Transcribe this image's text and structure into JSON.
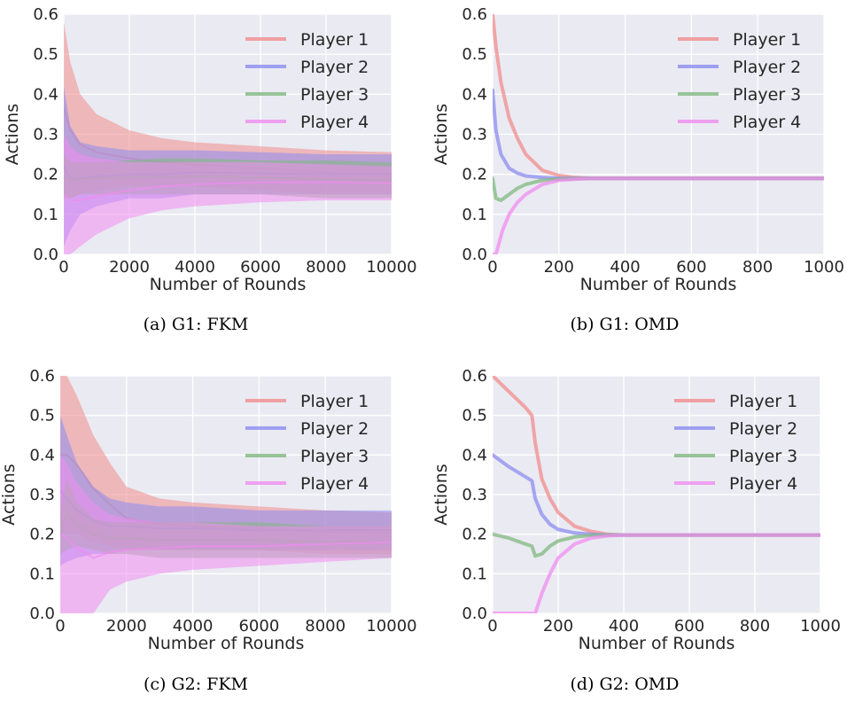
{
  "figure": {
    "legend_labels": [
      "Player 1",
      "Player 2",
      "Player 3",
      "Player 4"
    ],
    "colors": [
      "#f08c8c",
      "#8c8cf0",
      "#80b880",
      "#f08cf0"
    ],
    "axes_background": "#eaeaf2",
    "grid_color": "#ffffff"
  },
  "chart_data": [
    {
      "type": "area",
      "caption": "(a) G1: FKM",
      "xlabel": "Number of Rounds",
      "ylabel": "Actions",
      "xlim": [
        0,
        10000
      ],
      "ylim": [
        0,
        0.6
      ],
      "xticks": [
        0,
        2000,
        4000,
        6000,
        8000,
        10000
      ],
      "yticks": [
        0.0,
        0.1,
        0.2,
        0.3,
        0.4,
        0.5,
        0.6
      ],
      "grid": true,
      "legend_position": "top-right",
      "series": [
        {
          "name": "Player 1",
          "x": [
            0,
            200,
            500,
            1000,
            2000,
            3000,
            4000,
            6000,
            8000,
            10000
          ],
          "upper": [
            0.58,
            0.48,
            0.4,
            0.35,
            0.31,
            0.29,
            0.28,
            0.27,
            0.26,
            0.255
          ],
          "lower": [
            0.15,
            0.14,
            0.15,
            0.16,
            0.17,
            0.17,
            0.17,
            0.16,
            0.15,
            0.15
          ]
        },
        {
          "name": "Player 2",
          "x": [
            0,
            200,
            500,
            1000,
            2000,
            3000,
            4000,
            6000,
            8000,
            10000
          ],
          "upper": [
            0.42,
            0.32,
            0.28,
            0.27,
            0.26,
            0.26,
            0.26,
            0.255,
            0.25,
            0.25
          ],
          "lower": [
            0.02,
            0.06,
            0.1,
            0.12,
            0.14,
            0.14,
            0.15,
            0.15,
            0.15,
            0.15
          ]
        },
        {
          "name": "Player 3",
          "x": [
            0,
            200,
            500,
            1000,
            2000,
            3000,
            4000,
            6000,
            8000,
            10000
          ],
          "upper": [
            0.25,
            0.23,
            0.23,
            0.23,
            0.235,
            0.24,
            0.24,
            0.235,
            0.235,
            0.23
          ],
          "lower": [
            0.14,
            0.14,
            0.15,
            0.15,
            0.15,
            0.15,
            0.15,
            0.15,
            0.14,
            0.14
          ]
        },
        {
          "name": "Player 4",
          "x": [
            0,
            200,
            500,
            1000,
            2000,
            3000,
            4000,
            6000,
            8000,
            10000
          ],
          "upper": [
            0.3,
            0.27,
            0.25,
            0.24,
            0.23,
            0.23,
            0.23,
            0.23,
            0.225,
            0.22
          ],
          "lower": [
            0.0,
            0.0,
            0.02,
            0.05,
            0.09,
            0.11,
            0.12,
            0.13,
            0.135,
            0.135
          ]
        }
      ]
    },
    {
      "type": "line",
      "caption": "(b) G1: OMD",
      "xlabel": "Number of Rounds",
      "ylabel": "Actions",
      "xlim": [
        0,
        1000
      ],
      "ylim": [
        0,
        0.6
      ],
      "xticks": [
        0,
        200,
        400,
        600,
        800,
        1000
      ],
      "yticks": [
        0.0,
        0.1,
        0.2,
        0.3,
        0.4,
        0.5,
        0.6
      ],
      "grid": true,
      "legend_position": "top-right",
      "series": [
        {
          "name": "Player 1",
          "x": [
            0,
            10,
            25,
            50,
            75,
            100,
            150,
            200,
            250,
            300,
            400,
            1000
          ],
          "y": [
            0.6,
            0.52,
            0.43,
            0.34,
            0.29,
            0.25,
            0.21,
            0.197,
            0.192,
            0.19,
            0.19,
            0.19
          ]
        },
        {
          "name": "Player 2",
          "x": [
            0,
            10,
            25,
            50,
            75,
            100,
            150,
            200,
            300,
            400,
            1000
          ],
          "y": [
            0.41,
            0.31,
            0.25,
            0.215,
            0.203,
            0.196,
            0.192,
            0.19,
            0.19,
            0.19,
            0.19
          ]
        },
        {
          "name": "Player 3",
          "x": [
            0,
            10,
            25,
            50,
            75,
            100,
            150,
            200,
            300,
            400,
            1000
          ],
          "y": [
            0.19,
            0.14,
            0.135,
            0.15,
            0.165,
            0.175,
            0.185,
            0.188,
            0.19,
            0.19,
            0.19
          ]
        },
        {
          "name": "Player 4",
          "x": [
            0,
            10,
            20,
            30,
            50,
            75,
            100,
            150,
            200,
            250,
            300,
            400,
            1000
          ],
          "y": [
            0.0,
            0.0,
            0.03,
            0.06,
            0.1,
            0.13,
            0.15,
            0.175,
            0.185,
            0.188,
            0.19,
            0.19,
            0.19
          ]
        }
      ]
    },
    {
      "type": "area",
      "caption": "(c) G2: FKM",
      "xlabel": "Number of Rounds",
      "ylabel": "Actions",
      "xlim": [
        0,
        10000
      ],
      "ylim": [
        0,
        0.6
      ],
      "xticks": [
        0,
        2000,
        4000,
        6000,
        8000,
        10000
      ],
      "yticks": [
        0.0,
        0.1,
        0.2,
        0.3,
        0.4,
        0.5,
        0.6
      ],
      "grid": true,
      "legend_position": "top-right",
      "series": [
        {
          "name": "Player 1",
          "x": [
            0,
            200,
            500,
            1000,
            1500,
            2000,
            3000,
            4000,
            6000,
            8000,
            10000
          ],
          "upper": [
            0.6,
            0.6,
            0.55,
            0.45,
            0.38,
            0.32,
            0.29,
            0.28,
            0.27,
            0.26,
            0.255
          ],
          "lower": [
            0.2,
            0.2,
            0.2,
            0.18,
            0.17,
            0.16,
            0.16,
            0.16,
            0.16,
            0.15,
            0.15
          ]
        },
        {
          "name": "Player 2",
          "x": [
            0,
            200,
            500,
            1000,
            1500,
            2000,
            3000,
            4000,
            6000,
            8000,
            10000
          ],
          "upper": [
            0.5,
            0.45,
            0.38,
            0.32,
            0.29,
            0.28,
            0.27,
            0.27,
            0.26,
            0.26,
            0.26
          ],
          "lower": [
            0.12,
            0.13,
            0.14,
            0.15,
            0.15,
            0.16,
            0.16,
            0.16,
            0.16,
            0.16,
            0.16
          ]
        },
        {
          "name": "Player 3",
          "x": [
            0,
            200,
            500,
            1000,
            1500,
            2000,
            3000,
            4000,
            6000,
            8000,
            10000
          ],
          "upper": [
            0.26,
            0.34,
            0.28,
            0.24,
            0.23,
            0.23,
            0.23,
            0.23,
            0.23,
            0.22,
            0.22
          ],
          "lower": [
            0.15,
            0.16,
            0.17,
            0.16,
            0.15,
            0.15,
            0.14,
            0.14,
            0.14,
            0.14,
            0.14
          ]
        },
        {
          "name": "Player 4",
          "x": [
            0,
            200,
            500,
            1000,
            1500,
            2000,
            3000,
            4000,
            6000,
            8000,
            10000
          ],
          "upper": [
            0.4,
            0.38,
            0.33,
            0.28,
            0.25,
            0.24,
            0.23,
            0.23,
            0.22,
            0.22,
            0.22
          ],
          "lower": [
            0.0,
            0.0,
            0.0,
            0.0,
            0.06,
            0.08,
            0.1,
            0.11,
            0.12,
            0.13,
            0.14
          ]
        }
      ]
    },
    {
      "type": "line",
      "caption": "(d) G2: OMD",
      "xlabel": "Number of Rounds",
      "ylabel": "Actions",
      "xlim": [
        0,
        1000
      ],
      "ylim": [
        0,
        0.6
      ],
      "xticks": [
        0,
        200,
        400,
        600,
        800,
        1000
      ],
      "yticks": [
        0.0,
        0.1,
        0.2,
        0.3,
        0.4,
        0.5,
        0.6
      ],
      "grid": true,
      "legend_position": "top-right",
      "series": [
        {
          "name": "Player 1",
          "x": [
            0,
            50,
            100,
            120,
            130,
            150,
            175,
            200,
            250,
            300,
            350,
            400,
            1000
          ],
          "y": [
            0.6,
            0.56,
            0.52,
            0.5,
            0.43,
            0.34,
            0.29,
            0.255,
            0.22,
            0.207,
            0.2,
            0.198,
            0.198
          ]
        },
        {
          "name": "Player 2",
          "x": [
            0,
            50,
            100,
            120,
            130,
            150,
            175,
            200,
            250,
            300,
            350,
            400,
            1000
          ],
          "y": [
            0.4,
            0.37,
            0.345,
            0.335,
            0.29,
            0.25,
            0.225,
            0.212,
            0.203,
            0.2,
            0.198,
            0.198,
            0.198
          ]
        },
        {
          "name": "Player 3",
          "x": [
            0,
            50,
            100,
            120,
            130,
            150,
            175,
            200,
            250,
            300,
            350,
            400,
            1000
          ],
          "y": [
            0.2,
            0.19,
            0.175,
            0.17,
            0.145,
            0.15,
            0.17,
            0.183,
            0.193,
            0.197,
            0.198,
            0.198,
            0.198
          ]
        },
        {
          "name": "Player 4",
          "x": [
            0,
            120,
            130,
            150,
            175,
            200,
            250,
            300,
            350,
            400,
            1000
          ],
          "y": [
            0.0,
            0.0,
            0.0,
            0.05,
            0.1,
            0.14,
            0.175,
            0.19,
            0.196,
            0.198,
            0.198
          ]
        }
      ]
    }
  ]
}
